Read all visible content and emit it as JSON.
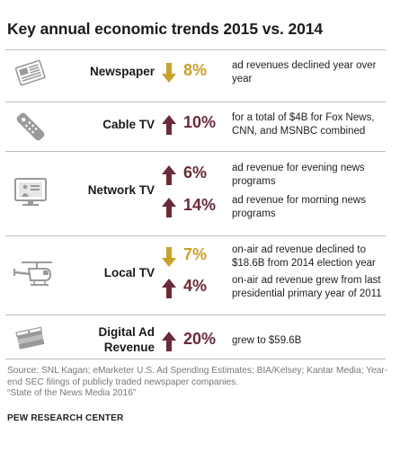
{
  "title": "Key annual economic trends 2015 vs. 2014",
  "colors": {
    "down": "#c8a22b",
    "up": "#6b2a37",
    "icon": "#9a9a9a",
    "separator": "#bdbdbd"
  },
  "chart_data": {
    "type": "table",
    "title": "Key annual economic trends 2015 vs. 2014",
    "rows": [
      {
        "label": "Newspaper",
        "icon": "newspaper-icon",
        "metrics": [
          {
            "direction": "down",
            "value": 8,
            "display": "8%",
            "description": "ad revenues declined year over year"
          }
        ]
      },
      {
        "label": "Cable TV",
        "icon": "remote-control-icon",
        "metrics": [
          {
            "direction": "up",
            "value": 10,
            "display": "10%",
            "description": "for a total of $4B for Fox News, CNN, and MSNBC combined"
          }
        ]
      },
      {
        "label": "Network TV",
        "icon": "television-icon",
        "metrics": [
          {
            "direction": "up",
            "value": 6,
            "display": "6%",
            "description": "ad revenue for evening news programs"
          },
          {
            "direction": "up",
            "value": 14,
            "display": "14%",
            "description": "ad revenue for morning news programs"
          }
        ]
      },
      {
        "label": "Local TV",
        "icon": "helicopter-icon",
        "metrics": [
          {
            "direction": "down",
            "value": 7,
            "display": "7%",
            "description": "on-air ad revenue declined to $18.6B from 2014 election year"
          },
          {
            "direction": "up",
            "value": 4,
            "display": "4%",
            "description": "on-air ad revenue grew from last presidential primary year of 2011"
          }
        ]
      },
      {
        "label": "Digital Ad Revenue",
        "icon": "money-stack-icon",
        "metrics": [
          {
            "direction": "up",
            "value": 20,
            "display": "20%",
            "description": "grew to $59.6B"
          }
        ]
      }
    ]
  },
  "source": "Source: SNL Kagan; eMarketer U.S. Ad Spending Estimates; BIA/Kelsey; Kantar Media; Year-end SEC filings of publicly traded newspaper companies.",
  "source_report": "“State of the News Media 2016”",
  "brand": "PEW RESEARCH CENTER"
}
